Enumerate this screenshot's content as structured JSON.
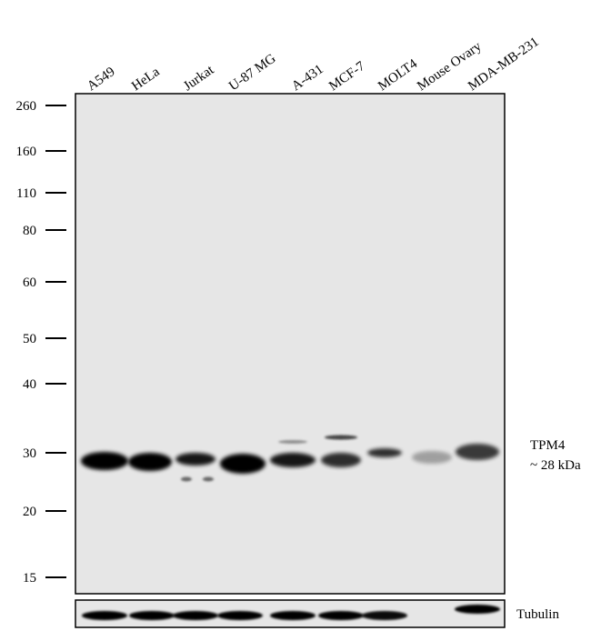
{
  "lanes": [
    "A549",
    "HeLa",
    "Jurkat",
    "U-87 MG",
    "A-431",
    "MCF-7",
    "MOLT4",
    "Mouse Ovary",
    "MDA-MB-231"
  ],
  "markers": [
    260,
    160,
    110,
    80,
    60,
    50,
    40,
    30,
    20,
    15
  ],
  "target": {
    "name": "TPM4",
    "size": "~ 28 kDa"
  },
  "loading_control": "Tubulin"
}
